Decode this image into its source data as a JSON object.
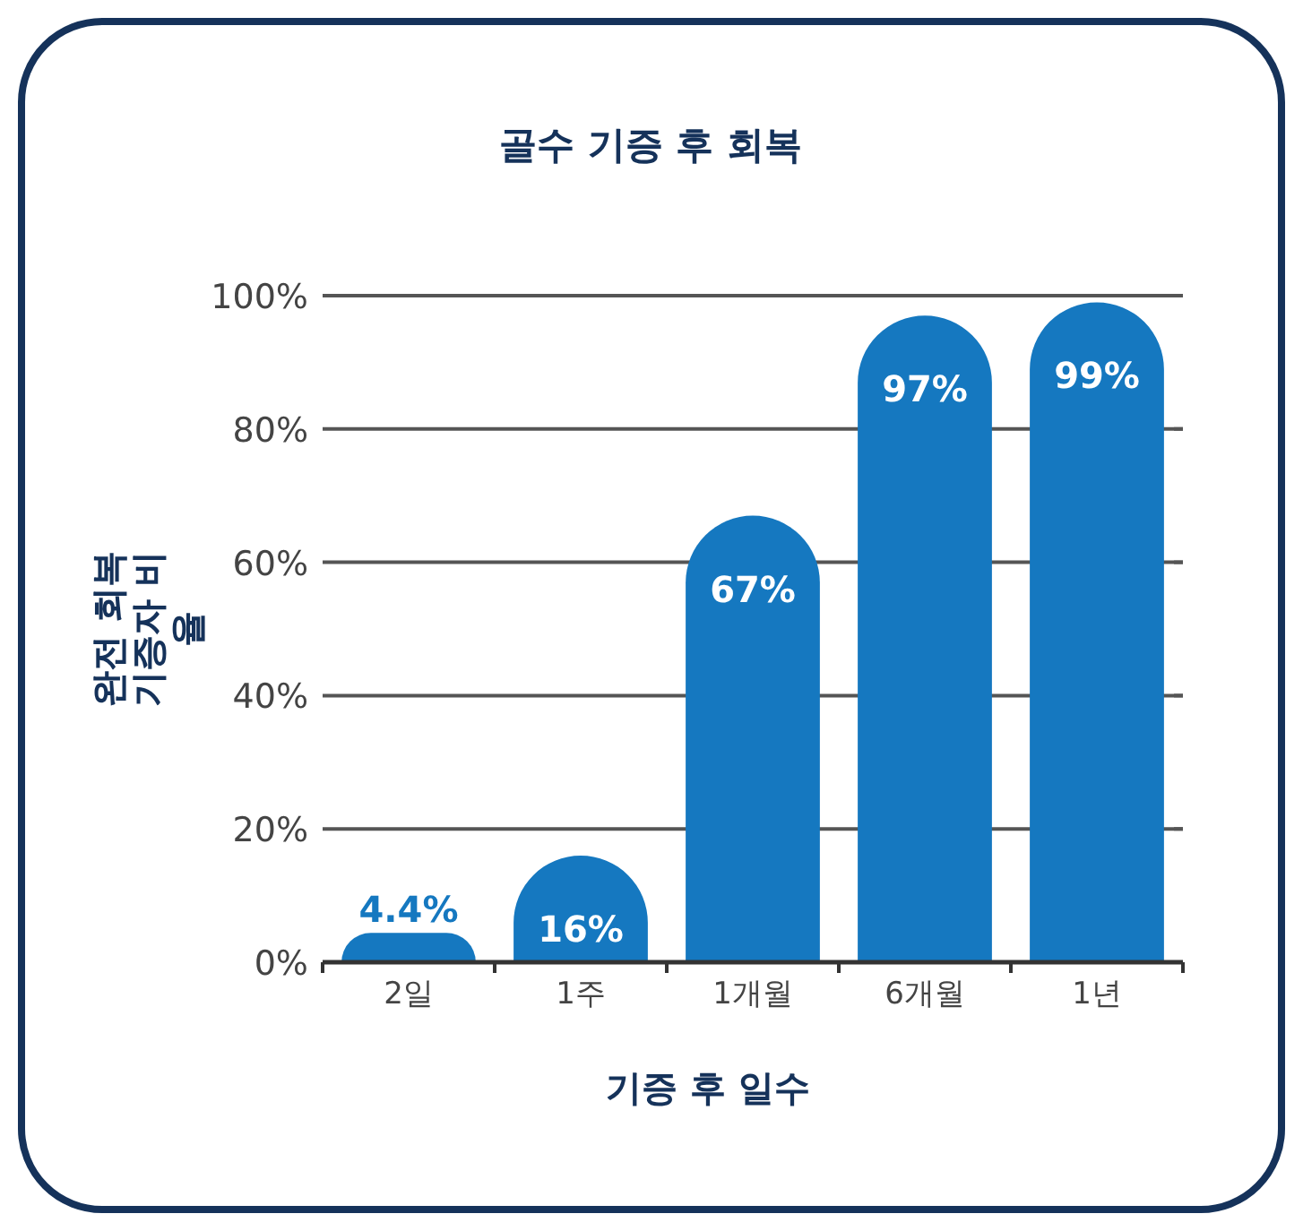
{
  "chart_data": {
    "type": "bar",
    "title": "골수 기증 후 회복",
    "xlabel": "기증 후 일수",
    "ylabel": "완전 회복 기증자 비율",
    "categories": [
      "2일",
      "1주",
      "1개월",
      "6개월",
      "1년"
    ],
    "values": [
      4.4,
      16,
      67,
      97,
      99
    ],
    "value_labels": [
      "4.4%",
      "16%",
      "67%",
      "97%",
      "99%"
    ],
    "color": "#1578c0",
    "ylim": [
      0,
      100
    ],
    "yticks": [
      {
        "value": 0,
        "label": "0%"
      },
      {
        "value": 20,
        "label": "20%"
      },
      {
        "value": 40,
        "label": "40%"
      },
      {
        "value": 60,
        "label": "60%"
      },
      {
        "value": 80,
        "label": "80%"
      },
      {
        "value": 100,
        "label": "100%"
      }
    ],
    "grid": "y"
  }
}
